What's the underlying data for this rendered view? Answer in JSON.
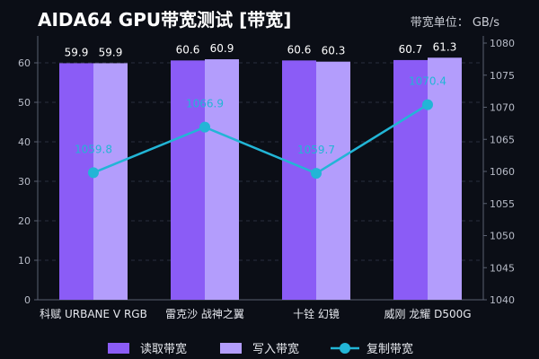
{
  "chart_data": {
    "type": "bar",
    "title": "AIDA64 GPU带宽测试 [带宽]",
    "unit_label": "带宽单位： GB/s",
    "categories": [
      "科赋 URBANE V RGB",
      "雷克沙 战神之翼",
      "十铨 幻镜",
      "威刚 龙耀 D500G"
    ],
    "series": [
      {
        "name": "读取带宽",
        "type": "bar",
        "axis": "left",
        "values": [
          59.9,
          60.6,
          60.6,
          60.7
        ],
        "labels": [
          "59.9",
          "60.6",
          "60.6",
          "60.7"
        ],
        "color": "#8b5cf6"
      },
      {
        "name": "写入带宽",
        "type": "bar",
        "axis": "left",
        "values": [
          59.9,
          60.9,
          60.3,
          61.3
        ],
        "labels": [
          "59.9",
          "60.9",
          "60.3",
          "61.3"
        ],
        "color": "#b39dfc"
      },
      {
        "name": "复制带宽",
        "type": "line",
        "axis": "right",
        "values": [
          1059.8,
          1066.9,
          1059.7,
          1070.4
        ],
        "labels": [
          "1059.8",
          "1066.9",
          "1059.7",
          "1070.4"
        ],
        "color": "#22b5d6"
      }
    ],
    "y_left": {
      "min": 0,
      "max": 65,
      "ticks": [
        0,
        10,
        20,
        30,
        40,
        50,
        60
      ]
    },
    "y_right": {
      "min": 1040,
      "max": 1080,
      "ticks": [
        1040,
        1045,
        1050,
        1055,
        1060,
        1065,
        1070,
        1075,
        1080
      ]
    },
    "grid": true,
    "legend_position": "bottom"
  }
}
